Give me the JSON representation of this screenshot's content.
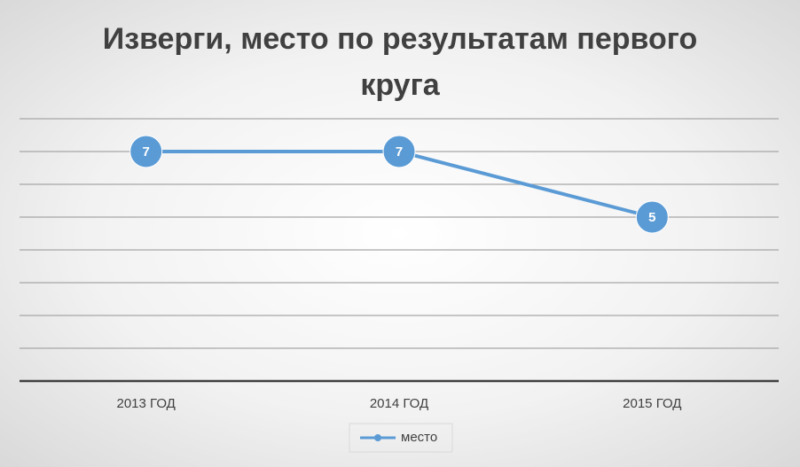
{
  "chart_data": {
    "type": "line",
    "title": "Изверги, место по результатам первого круга",
    "categories": [
      "2013 ГОД",
      "2014 ГОД",
      "2015 ГОД"
    ],
    "series": [
      {
        "name": "место",
        "color": "#5b9bd5",
        "values": [
          7,
          7,
          5
        ]
      }
    ],
    "ylim": [
      0,
      8
    ],
    "yticks": [
      0,
      1,
      2,
      3,
      4,
      5,
      6,
      7,
      8
    ],
    "grid": true,
    "legend": "bottom"
  }
}
